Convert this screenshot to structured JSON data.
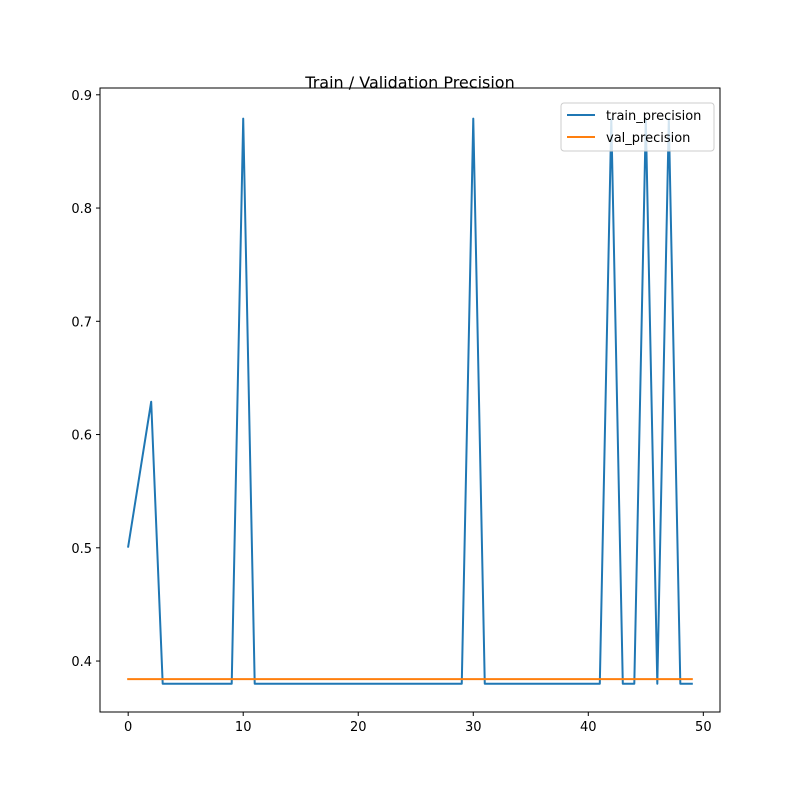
{
  "chart_data": {
    "type": "line",
    "title": "Train / Validation Precision",
    "xlabel": "",
    "ylabel": "",
    "xlim": [
      -2.45,
      51.45
    ],
    "ylim": [
      0.355,
      0.906
    ],
    "xticks": [
      0,
      10,
      20,
      30,
      40,
      50
    ],
    "yticks": [
      0.4,
      0.5,
      0.6,
      0.7,
      0.8,
      0.9
    ],
    "grid": false,
    "legend_position": "top-right",
    "series": [
      {
        "name": "train_precision",
        "color": "#1f77b4",
        "x": [
          0,
          1,
          2,
          3,
          4,
          5,
          6,
          7,
          8,
          9,
          10,
          11,
          12,
          13,
          14,
          15,
          16,
          17,
          18,
          19,
          20,
          21,
          22,
          23,
          24,
          25,
          26,
          27,
          28,
          29,
          30,
          31,
          32,
          33,
          34,
          35,
          36,
          37,
          38,
          39,
          40,
          41,
          42,
          43,
          44,
          45,
          46,
          47,
          48,
          49
        ],
        "y": [
          0.501,
          0.565,
          0.629,
          0.38,
          0.38,
          0.38,
          0.38,
          0.38,
          0.38,
          0.38,
          0.879,
          0.38,
          0.38,
          0.38,
          0.38,
          0.38,
          0.38,
          0.38,
          0.38,
          0.38,
          0.38,
          0.38,
          0.38,
          0.38,
          0.38,
          0.38,
          0.38,
          0.38,
          0.38,
          0.38,
          0.879,
          0.38,
          0.38,
          0.38,
          0.38,
          0.38,
          0.38,
          0.38,
          0.38,
          0.38,
          0.38,
          0.38,
          0.879,
          0.38,
          0.38,
          0.879,
          0.38,
          0.879,
          0.38,
          0.38
        ]
      },
      {
        "name": "val_precision",
        "color": "#ff7f0e",
        "x": [
          0,
          1,
          2,
          3,
          4,
          5,
          6,
          7,
          8,
          9,
          10,
          11,
          12,
          13,
          14,
          15,
          16,
          17,
          18,
          19,
          20,
          21,
          22,
          23,
          24,
          25,
          26,
          27,
          28,
          29,
          30,
          31,
          32,
          33,
          34,
          35,
          36,
          37,
          38,
          39,
          40,
          41,
          42,
          43,
          44,
          45,
          46,
          47,
          48,
          49
        ],
        "y": [
          0.384,
          0.384,
          0.384,
          0.384,
          0.384,
          0.384,
          0.384,
          0.384,
          0.384,
          0.384,
          0.384,
          0.384,
          0.384,
          0.384,
          0.384,
          0.384,
          0.384,
          0.384,
          0.384,
          0.384,
          0.384,
          0.384,
          0.384,
          0.384,
          0.384,
          0.384,
          0.384,
          0.384,
          0.384,
          0.384,
          0.384,
          0.384,
          0.384,
          0.384,
          0.384,
          0.384,
          0.384,
          0.384,
          0.384,
          0.384,
          0.384,
          0.384,
          0.384,
          0.384,
          0.384,
          0.384,
          0.384,
          0.384,
          0.384,
          0.384
        ]
      }
    ]
  }
}
